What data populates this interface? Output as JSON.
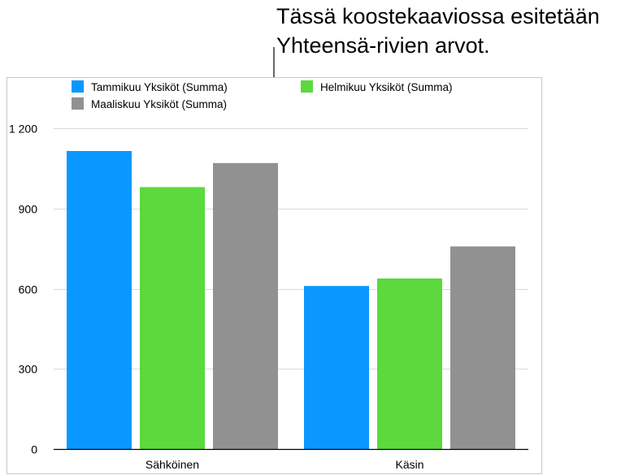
{
  "callout": {
    "line1": "Tässä koostekaaviossa esitetään",
    "line2": "Yhteensä-rivien arvot."
  },
  "chart_data": {
    "type": "bar",
    "categories": [
      "Sähköinen",
      "Käsin"
    ],
    "series": [
      {
        "name": "Tammikuu Yksiköt (Summa)",
        "color": "#0a97ff",
        "values": [
          1115,
          610
        ]
      },
      {
        "name": "Helmikuu Yksiköt (Summa)",
        "color": "#5bd93d",
        "values": [
          980,
          638
        ]
      },
      {
        "name": "Maaliskuu Yksiköt (Summa)",
        "color": "#919191",
        "values": [
          1070,
          758
        ]
      }
    ],
    "ylim": [
      0,
      1200
    ],
    "yticks": [
      0,
      300,
      600,
      900,
      1200
    ],
    "ytick_labels": [
      "0",
      "300",
      "600",
      "900",
      "1 200"
    ],
    "grid": true,
    "legend": "top-left"
  }
}
